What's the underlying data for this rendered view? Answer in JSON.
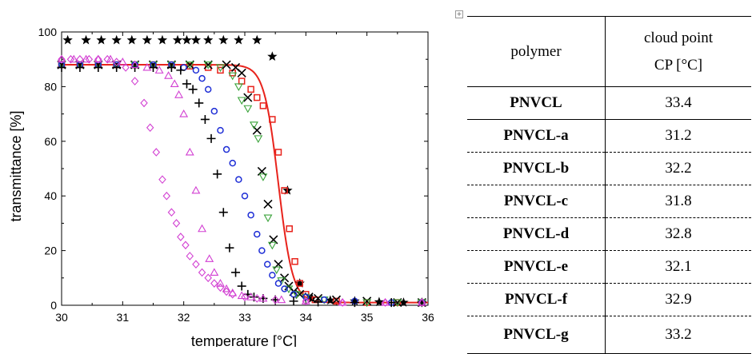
{
  "chart_data": {
    "type": "scatter",
    "xlabel": "temperature [°C]",
    "ylabel": "transmittance [%]",
    "xlim": [
      30,
      36
    ],
    "ylim": [
      0,
      100
    ],
    "x_ticks": [
      30,
      31,
      32,
      33,
      34,
      35,
      36
    ],
    "y_ticks": [
      0,
      20,
      40,
      60,
      80,
      100
    ],
    "x_tick_labels": [
      "30",
      "31",
      "32",
      "33",
      "34",
      "35",
      "36"
    ],
    "y_tick_labels": [
      "0",
      "20",
      "40",
      "60",
      "80",
      "100"
    ],
    "grid": false,
    "legend": "none",
    "series": [
      {
        "marker": "star",
        "color": "#000000",
        "points": [
          [
            30.1,
            97
          ],
          [
            30.4,
            97
          ],
          [
            30.65,
            97
          ],
          [
            30.9,
            97
          ],
          [
            31.15,
            97
          ],
          [
            31.4,
            97
          ],
          [
            31.65,
            97
          ],
          [
            31.9,
            97
          ],
          [
            32.05,
            97
          ],
          [
            32.2,
            97
          ],
          [
            32.4,
            97
          ],
          [
            32.65,
            97
          ],
          [
            32.9,
            97
          ],
          [
            33.2,
            97
          ],
          [
            33.45,
            91
          ],
          [
            33.7,
            42
          ],
          [
            33.9,
            8
          ],
          [
            34.1,
            2.5
          ],
          [
            34.4,
            1.8
          ],
          [
            34.8,
            1.5
          ],
          [
            35.2,
            1.2
          ],
          [
            35.6,
            1
          ],
          [
            35.9,
            1
          ]
        ]
      },
      {
        "marker": "square",
        "color": "#e8231c",
        "points": [
          [
            30.0,
            88
          ],
          [
            30.3,
            88
          ],
          [
            30.6,
            88
          ],
          [
            30.9,
            88
          ],
          [
            31.2,
            88
          ],
          [
            31.5,
            88
          ],
          [
            31.8,
            88
          ],
          [
            32.1,
            87.5
          ],
          [
            32.4,
            87
          ],
          [
            32.6,
            86
          ],
          [
            32.8,
            85
          ],
          [
            32.95,
            82
          ],
          [
            33.1,
            79
          ],
          [
            33.2,
            76
          ],
          [
            33.3,
            73
          ],
          [
            33.45,
            68
          ],
          [
            33.55,
            56
          ],
          [
            33.65,
            42
          ],
          [
            33.73,
            28
          ],
          [
            33.82,
            16
          ],
          [
            33.9,
            8
          ],
          [
            34.0,
            4
          ],
          [
            34.15,
            2
          ],
          [
            34.5,
            1.5
          ],
          [
            35.0,
            1
          ],
          [
            35.5,
            1
          ],
          [
            35.9,
            1
          ]
        ]
      },
      {
        "marker": "cross",
        "color": "#000000",
        "points": [
          [
            30.0,
            88
          ],
          [
            30.3,
            88
          ],
          [
            30.6,
            88
          ],
          [
            30.9,
            88
          ],
          [
            31.2,
            88
          ],
          [
            31.5,
            88
          ],
          [
            31.8,
            88
          ],
          [
            32.1,
            88
          ],
          [
            32.4,
            88
          ],
          [
            32.7,
            88
          ],
          [
            32.85,
            87
          ],
          [
            32.95,
            85
          ],
          [
            33.05,
            76
          ],
          [
            33.2,
            64
          ],
          [
            33.28,
            49
          ],
          [
            33.38,
            37
          ],
          [
            33.47,
            24
          ],
          [
            33.55,
            15
          ],
          [
            33.65,
            10
          ],
          [
            33.72,
            7
          ],
          [
            33.8,
            5
          ],
          [
            33.9,
            4
          ],
          [
            34.05,
            3
          ],
          [
            34.2,
            2.5
          ],
          [
            34.5,
            2
          ],
          [
            35.0,
            1.5
          ],
          [
            35.5,
            1
          ],
          [
            35.9,
            1
          ]
        ]
      },
      {
        "marker": "triangle-down",
        "color": "#3aa33a",
        "points": [
          [
            30.0,
            88
          ],
          [
            30.3,
            88
          ],
          [
            30.6,
            88
          ],
          [
            30.9,
            88
          ],
          [
            31.2,
            88
          ],
          [
            31.5,
            88
          ],
          [
            31.8,
            88
          ],
          [
            32.1,
            88
          ],
          [
            32.4,
            88
          ],
          [
            32.6,
            87
          ],
          [
            32.8,
            84
          ],
          [
            32.9,
            80
          ],
          [
            32.95,
            75
          ],
          [
            33.05,
            72
          ],
          [
            33.15,
            66
          ],
          [
            33.22,
            61
          ],
          [
            33.3,
            47
          ],
          [
            33.38,
            32
          ],
          [
            33.45,
            22
          ],
          [
            33.52,
            13
          ],
          [
            33.6,
            9
          ],
          [
            33.72,
            6
          ],
          [
            33.85,
            4
          ],
          [
            34.0,
            3
          ],
          [
            34.3,
            2
          ],
          [
            35.0,
            1
          ],
          [
            35.5,
            1
          ],
          [
            35.9,
            1
          ]
        ]
      },
      {
        "marker": "circle",
        "color": "#1f2fd6",
        "points": [
          [
            30.0,
            88
          ],
          [
            30.3,
            88
          ],
          [
            30.6,
            88
          ],
          [
            30.9,
            88
          ],
          [
            31.2,
            88
          ],
          [
            31.5,
            88
          ],
          [
            31.8,
            88
          ],
          [
            32.0,
            87
          ],
          [
            32.2,
            86
          ],
          [
            32.3,
            83
          ],
          [
            32.4,
            79
          ],
          [
            32.5,
            71
          ],
          [
            32.6,
            64
          ],
          [
            32.7,
            57
          ],
          [
            32.8,
            52
          ],
          [
            32.9,
            46
          ],
          [
            33.0,
            40
          ],
          [
            33.1,
            33
          ],
          [
            33.2,
            26
          ],
          [
            33.28,
            20
          ],
          [
            33.37,
            15
          ],
          [
            33.45,
            11
          ],
          [
            33.55,
            8
          ],
          [
            33.65,
            6
          ],
          [
            33.8,
            4
          ],
          [
            34.0,
            3
          ],
          [
            34.3,
            2
          ],
          [
            34.8,
            1.5
          ],
          [
            35.4,
            1
          ],
          [
            35.9,
            1
          ]
        ]
      },
      {
        "marker": "plus",
        "color": "#000000",
        "points": [
          [
            30.0,
            87
          ],
          [
            30.3,
            87
          ],
          [
            30.6,
            87
          ],
          [
            30.9,
            87
          ],
          [
            31.2,
            87
          ],
          [
            31.5,
            87
          ],
          [
            31.8,
            87
          ],
          [
            31.95,
            86
          ],
          [
            32.05,
            81
          ],
          [
            32.15,
            79
          ],
          [
            32.25,
            74
          ],
          [
            32.35,
            68
          ],
          [
            32.45,
            61
          ],
          [
            32.55,
            48
          ],
          [
            32.65,
            34
          ],
          [
            32.75,
            21
          ],
          [
            32.85,
            12
          ],
          [
            32.95,
            7
          ],
          [
            33.05,
            4
          ],
          [
            33.15,
            3
          ],
          [
            33.3,
            2.5
          ],
          [
            33.5,
            2
          ],
          [
            33.8,
            1.5
          ],
          [
            34.2,
            1.2
          ],
          [
            34.8,
            1
          ],
          [
            35.4,
            1
          ],
          [
            35.9,
            1
          ]
        ]
      },
      {
        "marker": "triangle-up",
        "color": "#d23fd2",
        "points": [
          [
            30.0,
            90
          ],
          [
            30.2,
            90
          ],
          [
            30.4,
            90
          ],
          [
            30.6,
            90
          ],
          [
            30.8,
            90
          ],
          [
            31.0,
            89
          ],
          [
            31.2,
            88
          ],
          [
            31.4,
            87
          ],
          [
            31.6,
            86
          ],
          [
            31.75,
            84
          ],
          [
            31.85,
            81
          ],
          [
            31.92,
            77
          ],
          [
            32.0,
            70
          ],
          [
            32.1,
            56
          ],
          [
            32.2,
            42
          ],
          [
            32.3,
            28
          ],
          [
            32.42,
            17
          ],
          [
            32.5,
            12
          ],
          [
            32.6,
            8
          ],
          [
            32.7,
            6
          ],
          [
            32.8,
            4.5
          ],
          [
            32.95,
            3.5
          ],
          [
            33.1,
            3
          ],
          [
            33.3,
            2.5
          ],
          [
            33.6,
            2
          ],
          [
            34.0,
            1.5
          ],
          [
            34.6,
            1
          ],
          [
            35.3,
            1
          ],
          [
            35.9,
            1
          ]
        ]
      },
      {
        "marker": "diamond",
        "color": "#d23fd2",
        "points": [
          [
            30.0,
            90
          ],
          [
            30.15,
            90
          ],
          [
            30.3,
            90
          ],
          [
            30.45,
            90
          ],
          [
            30.6,
            90
          ],
          [
            30.75,
            90
          ],
          [
            30.9,
            89
          ],
          [
            31.05,
            87
          ],
          [
            31.2,
            82
          ],
          [
            31.35,
            74
          ],
          [
            31.45,
            65
          ],
          [
            31.55,
            56
          ],
          [
            31.65,
            46
          ],
          [
            31.72,
            40
          ],
          [
            31.8,
            34
          ],
          [
            31.88,
            30
          ],
          [
            31.95,
            25
          ],
          [
            32.03,
            22
          ],
          [
            32.1,
            18
          ],
          [
            32.2,
            15
          ],
          [
            32.3,
            12
          ],
          [
            32.4,
            10
          ],
          [
            32.5,
            8
          ],
          [
            32.6,
            6.5
          ],
          [
            32.7,
            5
          ],
          [
            32.8,
            4
          ],
          [
            33.0,
            3
          ],
          [
            33.2,
            2.5
          ],
          [
            33.5,
            2
          ],
          [
            34.0,
            1.5
          ],
          [
            34.6,
            1
          ],
          [
            35.3,
            1
          ],
          [
            35.9,
            1
          ]
        ]
      }
    ],
    "fit_curve": {
      "color": "#e8231c",
      "plateau": 88,
      "midpoint": 33.55,
      "steepness": 8.5
    }
  },
  "table": {
    "header_polymer": "polymer",
    "header_cp_line1": "cloud point",
    "header_cp_line2": "CP [°C]",
    "rows": [
      {
        "name": "PNVCL",
        "cp": "33.4"
      },
      {
        "name": "PNVCL-a",
        "cp": "31.2"
      },
      {
        "name": "PNVCL-b",
        "cp": "32.2"
      },
      {
        "name": "PNVCL-c",
        "cp": "31.8"
      },
      {
        "name": "PNVCL-d",
        "cp": "32.8"
      },
      {
        "name": "PNVCL-e",
        "cp": "32.1"
      },
      {
        "name": "PNVCL-f",
        "cp": "32.9"
      },
      {
        "name": "PNVCL-g",
        "cp": "33.2"
      }
    ]
  },
  "icons": {
    "table_handle": "expand-cross-icon"
  }
}
